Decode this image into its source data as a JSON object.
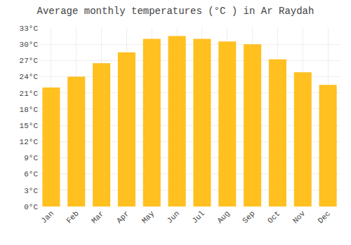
{
  "chart_data": {
    "type": "bar",
    "title": "Average monthly temperatures (°C ) in Ar Raydah",
    "categories": [
      "Jan",
      "Feb",
      "Mar",
      "Apr",
      "May",
      "Jun",
      "Jul",
      "Aug",
      "Sep",
      "Oct",
      "Nov",
      "Dec"
    ],
    "values": [
      22.0,
      24.0,
      26.5,
      28.5,
      31.0,
      31.5,
      31.0,
      30.5,
      30.0,
      27.2,
      24.8,
      22.5
    ],
    "color": "#FFC020",
    "ylim": [
      0,
      33
    ],
    "yticks": [
      {
        "value": 0,
        "label": "0°C"
      },
      {
        "value": 3,
        "label": "3°C"
      },
      {
        "value": 6,
        "label": "6°C"
      },
      {
        "value": 9,
        "label": "9°C"
      },
      {
        "value": 12,
        "label": "12°C"
      },
      {
        "value": 15,
        "label": "15°C"
      },
      {
        "value": 18,
        "label": "18°C"
      },
      {
        "value": 21,
        "label": "21°C"
      },
      {
        "value": 24,
        "label": "24°C"
      },
      {
        "value": 27,
        "label": "27°C"
      },
      {
        "value": 30,
        "label": "30°C"
      },
      {
        "value": 33,
        "label": "33°C"
      }
    ],
    "grid": true
  }
}
